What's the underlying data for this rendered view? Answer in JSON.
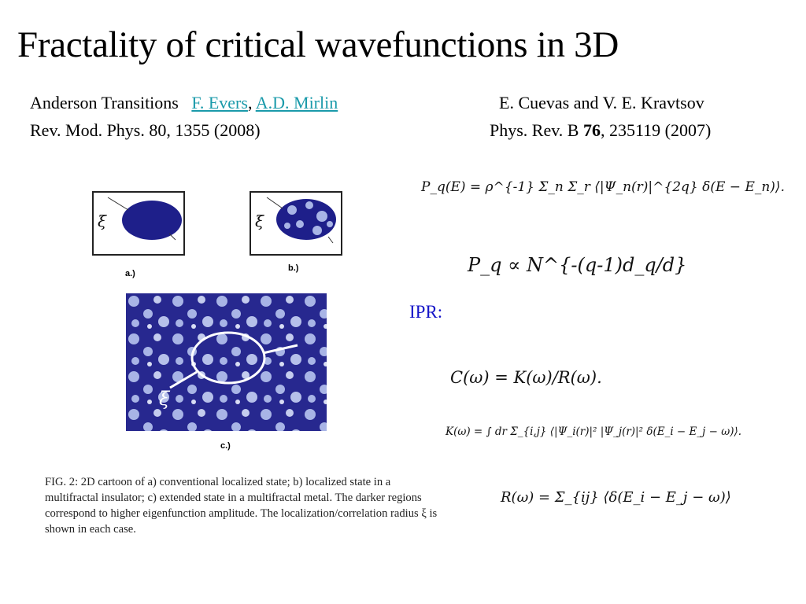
{
  "title": "Fractality of  critical wavefunctions in 3D",
  "ref_left": {
    "line1_prefix": "Anderson Transitions",
    "author1": "F. Evers",
    "sep": ",",
    "author2": "A.D. Mirlin",
    "line2": "Rev. Mod. Phys. 80, 1355 (2008)"
  },
  "ref_right": {
    "line1": "E. Cuevas and V. E. Kravtsov",
    "line2_prefix": "Phys. Rev. B",
    "volume": "76",
    "line2_suffix": ", 235119 (2007)"
  },
  "ipr_label": "IPR:",
  "figure": {
    "label_a": "a.)",
    "label_b": "b.)",
    "label_c": "c.)",
    "xi": "ξ",
    "caption": "FIG. 2: 2D cartoon of a) conventional localized state; b) localized state in a multifractal insulator; c) extended state in a multifractal metal. The darker regions correspond to higher eigenfunction amplitude. The localization/correlation radius ξ is shown in each case.",
    "colors": {
      "dark_blue": "#1e1f8a",
      "light_blue": "#a8b4e6"
    }
  },
  "equations": {
    "pq": "P_q(E) = ρ^{-1} Σ_n Σ_r ⟨|Ψ_n(r)|^{2q} δ(E − E_n)⟩.",
    "scaling": "P_q ∝ N^{-(q-1)d_q/d}",
    "c": "C(ω) = K(ω)/R(ω).",
    "k": "K(ω) = ∫ dr Σ_{i,j} ⟨|Ψ_i(r)|² |Ψ_j(r)|² δ(E_i − E_j − ω)⟩.",
    "r": "R(ω) = Σ_{ij} ⟨δ(E_i − E_j − ω)⟩"
  }
}
